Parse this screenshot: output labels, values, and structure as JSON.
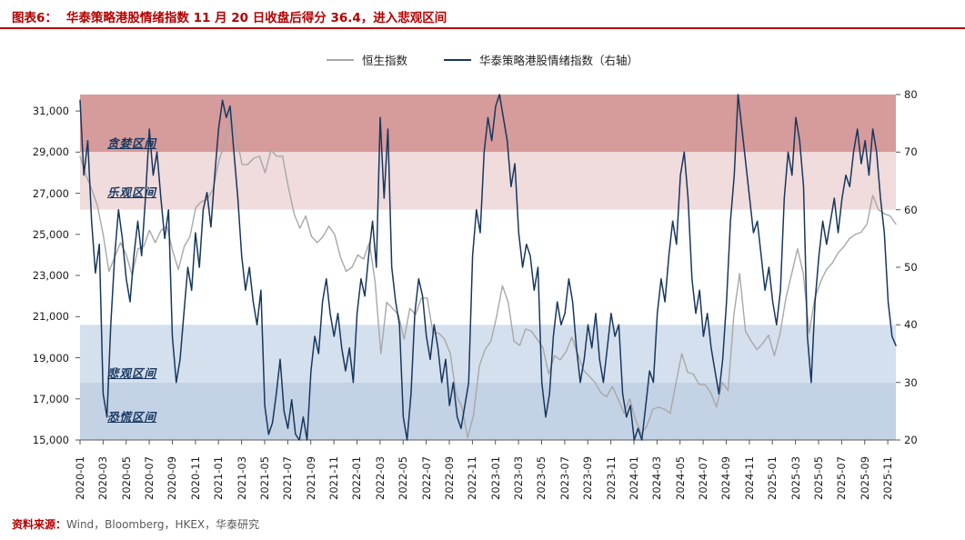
{
  "header": {
    "figure_label": "图表6：",
    "title": "华泰策略港股情绪指数 11 月 20 日收盘后得分 36.4，进入悲观区间"
  },
  "legend": [
    {
      "id": "hsi",
      "label": "恒生指数",
      "color": "#a8a8a8"
    },
    {
      "id": "sentiment",
      "label": "华泰策略港股情绪指数（右轴）",
      "color": "#17375e"
    }
  ],
  "footer": {
    "source_label": "资料来源：",
    "source_text": "Wind，Bloomberg，HKEX，华泰研究"
  },
  "chart_data": {
    "type": "line",
    "title": "华泰策略港股情绪指数 11 月 20 日收盘后得分 36.4，进入悲观区间",
    "x_unit": "months since 2020-01",
    "x_domain": [
      0,
      70.7
    ],
    "x_tick_positions": [
      0,
      2,
      4,
      6,
      8,
      10,
      12,
      14,
      16,
      18,
      20,
      22,
      24,
      26,
      28,
      30,
      32,
      34,
      36,
      38,
      40,
      42,
      44,
      46,
      48,
      50,
      52,
      54,
      56,
      58,
      60,
      62,
      64,
      66,
      68,
      70
    ],
    "x_tick_labels": [
      "2020-01",
      "2020-03",
      "2020-05",
      "2020-07",
      "2020-09",
      "2020-11",
      "2021-01",
      "2021-03",
      "2021-05",
      "2021-07",
      "2021-09",
      "2021-11",
      "2022-01",
      "2022-03",
      "2022-05",
      "2022-07",
      "2022-09",
      "2022-11",
      "2023-01",
      "2023-03",
      "2023-05",
      "2023-07",
      "2023-09",
      "2023-11",
      "2024-01",
      "2024-03",
      "2024-05",
      "2024-07",
      "2024-09",
      "2024-11",
      "2025-01",
      "2025-03",
      "2025-05",
      "2025-07",
      "2025-09",
      "2025-11"
    ],
    "left_axis": {
      "title": "恒生指数",
      "range": [
        15000,
        31800
      ],
      "tick_values": [
        15000,
        17000,
        19000,
        21000,
        23000,
        25000,
        27000,
        29000,
        31000
      ],
      "tick_labels": [
        "15,000",
        "17,000",
        "19,000",
        "21,000",
        "23,000",
        "25,000",
        "27,000",
        "29,000",
        "31,000"
      ]
    },
    "right_axis": {
      "title": "华泰策略港股情绪指数",
      "range": [
        20,
        80
      ],
      "tick_values": [
        20,
        30,
        40,
        50,
        60,
        70,
        80
      ]
    },
    "zones": [
      {
        "id": "greed",
        "name": "贪婪区间",
        "from": 70,
        "to": 80,
        "color": "#d69b9b",
        "label_value": 72
      },
      {
        "id": "optimism",
        "name": "乐观区间",
        "from": 60,
        "to": 70,
        "color": "#f0dcdc",
        "label_value": 63.5
      },
      {
        "id": "pessimism",
        "name": "悲观区间",
        "from": 30,
        "to": 40,
        "color": "#d5e0ee",
        "label_value": 32
      },
      {
        "id": "panic",
        "name": "恐慌区间",
        "from": 20,
        "to": 30,
        "color": "#c4d2e5",
        "label_value": 24.5
      }
    ],
    "latest_sentiment_score": 36.4,
    "latest_date_note": "11 月 20 日收盘后",
    "series": [
      {
        "id": "hsi",
        "name": "恒生指数",
        "axis": "left",
        "color": "#a8a8a8",
        "width": 1.4,
        "values": [
          28800,
          27900,
          27200,
          26400,
          25000,
          23200,
          23900,
          24600,
          24000,
          23000,
          24300,
          24400,
          25200,
          24600,
          25200,
          25400,
          24200,
          23300,
          24400,
          24900,
          26300,
          26600,
          26700,
          27200,
          28600,
          29400,
          31000,
          29800,
          28400,
          28400,
          28700,
          28800,
          28000,
          29100,
          28800,
          28800,
          27300,
          26000,
          25300,
          25900,
          24900,
          24600,
          24900,
          25400,
          25000,
          23900,
          23200,
          23400,
          24000,
          23800,
          24600,
          22700,
          19200,
          21700,
          21400,
          21100,
          19900,
          21400,
          21100,
          21900,
          21900,
          20200,
          20200,
          19900,
          19200,
          17200,
          16600,
          15100,
          16200,
          18600,
          19400,
          19800,
          21000,
          22500,
          21700,
          19800,
          19600,
          20400,
          20300,
          19900,
          19500,
          18200,
          19100,
          18900,
          19300,
          20000,
          19200,
          18400,
          18100,
          17800,
          17300,
          17100,
          17600,
          17000,
          16300,
          17000,
          16000,
          15300,
          15700,
          16500,
          16600,
          16500,
          16300,
          17800,
          19200,
          18300,
          18200,
          17700,
          17700,
          17300,
          16600,
          17800,
          17400,
          21100,
          23100,
          20300,
          19800,
          19400,
          19700,
          20100,
          19100,
          20200,
          21900,
          23100,
          24300,
          23100,
          20200,
          21900,
          22700,
          23300,
          23600,
          24100,
          24400,
          24800,
          25000,
          25100,
          25500,
          26900,
          26200,
          26000,
          25900,
          25500
        ]
      },
      {
        "id": "sentiment",
        "name": "华泰策略港股情绪指数（右轴）",
        "axis": "right",
        "color": "#17375e",
        "width": 1.5,
        "values": [
          79,
          66,
          72,
          58,
          49,
          54,
          28,
          24,
          40,
          52,
          60,
          55,
          48,
          44,
          52,
          58,
          52,
          62,
          74,
          66,
          70,
          62,
          55,
          60,
          38,
          30,
          34,
          42,
          50,
          46,
          56,
          50,
          60,
          63,
          57,
          66,
          74,
          79,
          76,
          78,
          70,
          62,
          52,
          46,
          50,
          44,
          40,
          46,
          26,
          21,
          23,
          28,
          34,
          25,
          22,
          27,
          21,
          20,
          24,
          20,
          32,
          38,
          35,
          44,
          48,
          42,
          38,
          42,
          36,
          32,
          36,
          30,
          42,
          48,
          45,
          52,
          58,
          50,
          76,
          62,
          74,
          50,
          44,
          40,
          24,
          20,
          28,
          42,
          48,
          45,
          38,
          34,
          40,
          36,
          30,
          34,
          26,
          30,
          24,
          22,
          26,
          30,
          52,
          60,
          56,
          70,
          76,
          72,
          78,
          80,
          76,
          72,
          64,
          68,
          56,
          50,
          54,
          52,
          46,
          50,
          30,
          24,
          28,
          38,
          44,
          40,
          42,
          48,
          44,
          36,
          30,
          34,
          40,
          36,
          42,
          34,
          30,
          36,
          42,
          38,
          40,
          28,
          24,
          26,
          20,
          22,
          20,
          26,
          32,
          30,
          42,
          48,
          44,
          52,
          58,
          54,
          66,
          70,
          62,
          48,
          42,
          46,
          38,
          42,
          36,
          32,
          28,
          34,
          44,
          58,
          66,
          80,
          74,
          68,
          62,
          56,
          58,
          52,
          46,
          50,
          44,
          40,
          46,
          62,
          70,
          66,
          76,
          72,
          64,
          38,
          30,
          44,
          52,
          58,
          54,
          58,
          62,
          56,
          62,
          66,
          64,
          70,
          74,
          68,
          72,
          66,
          74,
          70,
          62,
          56,
          44,
          38,
          36.4
        ]
      }
    ]
  }
}
